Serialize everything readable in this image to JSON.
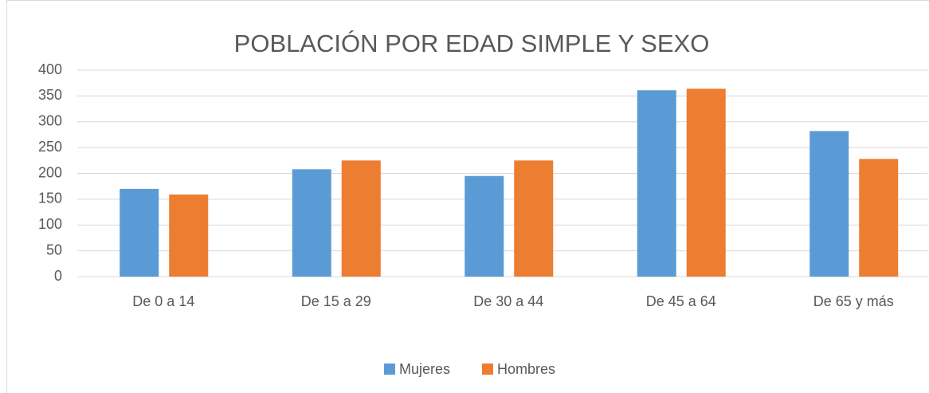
{
  "chart_data": {
    "type": "bar",
    "title": "POBLACIÓN POR EDAD SIMPLE Y SEXO",
    "categories": [
      "De 0 a 14",
      "De 15 a 29",
      "De 30 a 44",
      "De 45 a 64",
      "De 65 y más"
    ],
    "series": [
      {
        "name": "Mujeres",
        "color": "#5b9bd5",
        "values": [
          170,
          208,
          195,
          361,
          282
        ]
      },
      {
        "name": "Hombres",
        "color": "#ed7d31",
        "values": [
          159,
          225,
          225,
          364,
          228
        ]
      }
    ],
    "ylim": [
      0,
      400
    ],
    "yticks": [
      0,
      50,
      100,
      150,
      200,
      250,
      300,
      350,
      400
    ],
    "grid": true,
    "legend": "bottom"
  }
}
